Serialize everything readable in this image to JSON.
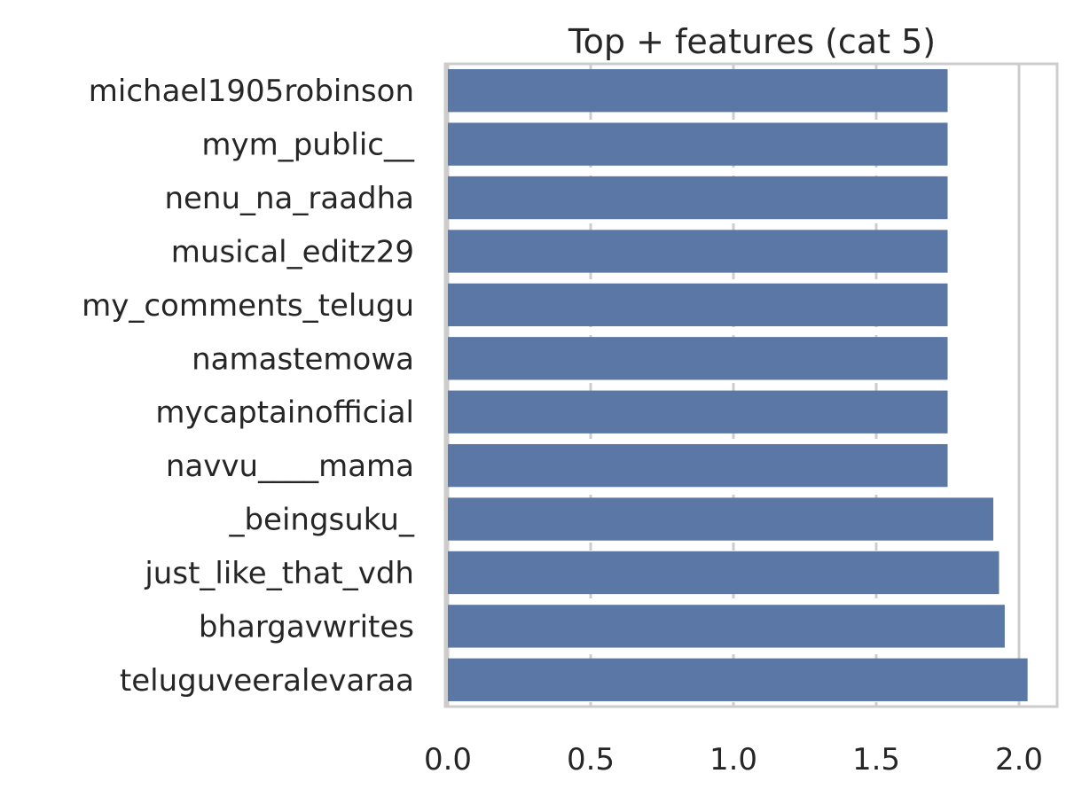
{
  "chart_data": {
    "type": "bar",
    "orientation": "horizontal",
    "title": "Top + features (cat 5)",
    "xlabel": "",
    "ylabel": "",
    "categories": [
      "michael1905robinson",
      "mym_public__",
      "nenu_na_raadha",
      "musical_editz29",
      "my_comments_telugu",
      "namastemowa",
      "mycaptainofficial",
      "navvu____mama",
      "_beingsuku_",
      "just_like_that_vdh",
      "bhargavwrites",
      "teluguveeralevaraa"
    ],
    "values": [
      1.75,
      1.75,
      1.75,
      1.75,
      1.75,
      1.75,
      1.75,
      1.75,
      1.91,
      1.93,
      1.95,
      2.03
    ],
    "xlim": [
      0,
      2.15
    ],
    "xticks": [
      "0.0",
      "0.5",
      "1.0",
      "1.5",
      "2.0"
    ],
    "grid": "x-dashed",
    "bar_color": "#5a77a6",
    "frame_color": "#cccccc"
  }
}
